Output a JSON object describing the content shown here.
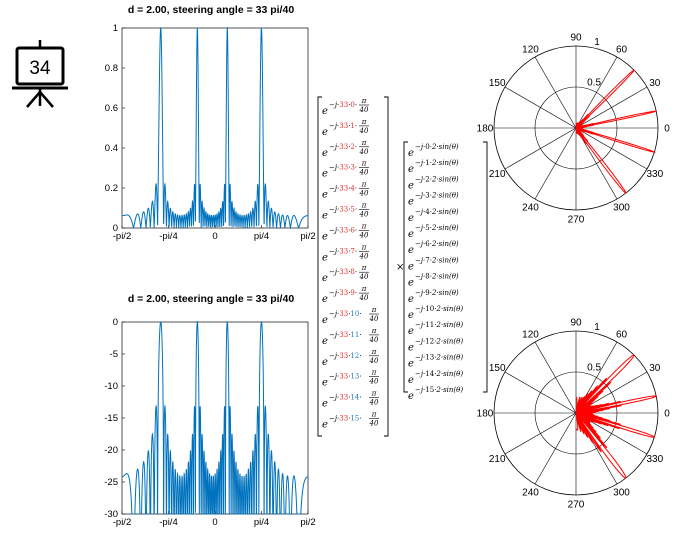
{
  "badge": {
    "number": "34",
    "icon": "presentation-board-icon"
  },
  "colors": {
    "line": "#0072BD",
    "polar": "#FF0000",
    "red_index": "#E8302A",
    "blue_index": "#1E7BC0",
    "grid": "#000000"
  },
  "chart_data": [
    {
      "type": "line",
      "title": "d = 2.00, steering angle  = 33 pi/40",
      "xlabel": "",
      "ylabel": "",
      "x_ticks": [
        "-pi/2",
        "-pi/4",
        "0",
        "pi/4",
        "pi/2"
      ],
      "y_ticks": [
        "0",
        "0.2",
        "0.4",
        "0.6",
        "0.8",
        "1"
      ],
      "xlim": [
        -1.5708,
        1.5708
      ],
      "ylim": [
        0,
        1
      ],
      "series": [
        {
          "x": [],
          "values": [],
          "generator": "abs(sum_{n=0..15} exp(j*n*(2*pi*2*sin(theta) - 33*pi/40)))/16, theta in [-pi/2, pi/2]"
        }
      ]
    },
    {
      "type": "line",
      "title": "d = 2.00, steering angle  = 33 pi/40",
      "xlabel": "",
      "ylabel": "",
      "x_ticks": [
        "-pi/2",
        "-pi/4",
        "0",
        "pi/4",
        "pi/2"
      ],
      "y_ticks": [
        "-30",
        "-25",
        "-20",
        "-15",
        "-10",
        "-5",
        "0"
      ],
      "xlim": [
        -1.5708,
        1.5708
      ],
      "ylim": [
        -30,
        0
      ],
      "series": [
        {
          "x": [],
          "values": [],
          "generator": "20*log10 of the normalized pattern above, clipped at -30"
        }
      ]
    },
    {
      "type": "polar",
      "angle_ticks": [
        "0",
        "30",
        "60",
        "90",
        "120",
        "150",
        "180",
        "210",
        "240",
        "270",
        "300",
        "330"
      ],
      "radial_ticks": [
        "0.5",
        "1"
      ],
      "rlim": [
        0,
        1
      ],
      "theta_range_deg": [
        -90,
        90
      ],
      "series": [
        {
          "generator": "linear normalized pattern"
        }
      ]
    },
    {
      "type": "polar",
      "angle_ticks": [
        "0",
        "30",
        "60",
        "90",
        "120",
        "150",
        "180",
        "210",
        "240",
        "270",
        "300",
        "330"
      ],
      "radial_ticks": [
        "0.5",
        "1"
      ],
      "rlim": [
        0,
        1
      ],
      "theta_range_deg": [
        -90,
        90
      ],
      "series": [
        {
          "generator": "dB pattern mapped to radius (r = (dB+30)/30)"
        }
      ]
    }
  ],
  "matrix": {
    "steer_coeff": "33",
    "pi_num": "π",
    "pi_den": "40",
    "base": "e",
    "exp_prefix": "−j·",
    "left_indices": [
      "0",
      "1",
      "2",
      "3",
      "4",
      "5",
      "6",
      "7",
      "8",
      "9",
      "10",
      "11",
      "12",
      "13",
      "14",
      "15"
    ],
    "right_indices": [
      "0",
      "1",
      "2",
      "3",
      "4",
      "5",
      "6",
      "7",
      "8",
      "9",
      "10",
      "11",
      "12",
      "13",
      "14",
      "15"
    ],
    "right_suffix": "·2·sin(θ)",
    "times": "×"
  }
}
